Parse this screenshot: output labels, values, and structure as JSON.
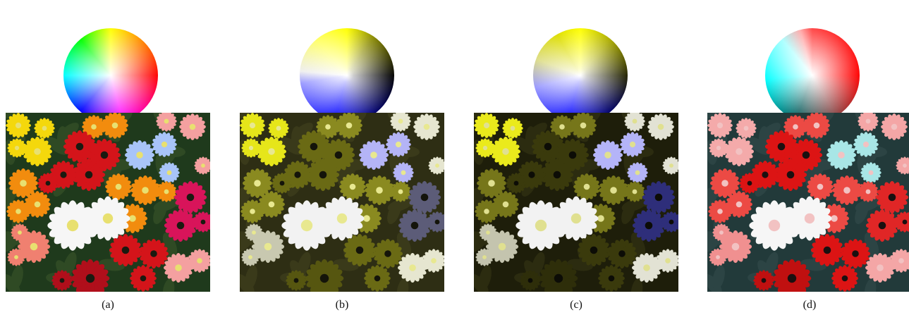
{
  "panels": [
    {
      "id": "a",
      "caption": "(a)",
      "colors": {
        "background": "#1f3a1c",
        "leaf": "#2f4a24",
        "yellow": "#f4d80c",
        "orange": "#f28c0e",
        "red": "#d4141a",
        "deep_red": "#b00f1b",
        "white": "#f6f6f6",
        "blue": "#a8c4f8",
        "pink": "#f4a0a0",
        "magenta": "#d8145a",
        "salmon": "#f08070",
        "center": "#e8e070",
        "dark_center": "#1a1a10"
      }
    },
    {
      "id": "b",
      "caption": "(b)",
      "colors": {
        "background": "#2e2e14",
        "leaf": "#3a3a1a",
        "yellow": "#e6e61a",
        "orange": "#8a8a20",
        "red": "#6a6a14",
        "deep_red": "#565610",
        "white": "#f2f2f2",
        "blue": "#b4b4f6",
        "pink": "#e6e6d0",
        "magenta": "#5c5c78",
        "salmon": "#c8c8b0",
        "center": "#e8e890",
        "dark_center": "#14140a"
      }
    },
    {
      "id": "c",
      "caption": "(c)",
      "colors": {
        "background": "#1e1e0a",
        "leaf": "#2c2c10",
        "yellow": "#eaea1c",
        "orange": "#76761a",
        "red": "#3a3a0c",
        "deep_red": "#2e2e0a",
        "white": "#f2f2f2",
        "blue": "#b4b4f8",
        "pink": "#e2e2d4",
        "magenta": "#2e2e7a",
        "salmon": "#c4c4ae",
        "center": "#e0e090",
        "dark_center": "#0c0c06"
      }
    },
    {
      "id": "d",
      "caption": "(d)",
      "colors": {
        "background": "#223a3a",
        "leaf": "#2c4444",
        "yellow": "#f4aaaa",
        "orange": "#ec4a44",
        "red": "#dc1414",
        "deep_red": "#c01010",
        "white": "#f6f6f6",
        "blue": "#a8e6e6",
        "pink": "#f4a6a6",
        "magenta": "#e02626",
        "salmon": "#f09090",
        "center": "#f2c2c2",
        "dark_center": "#1a1010"
      }
    }
  ]
}
